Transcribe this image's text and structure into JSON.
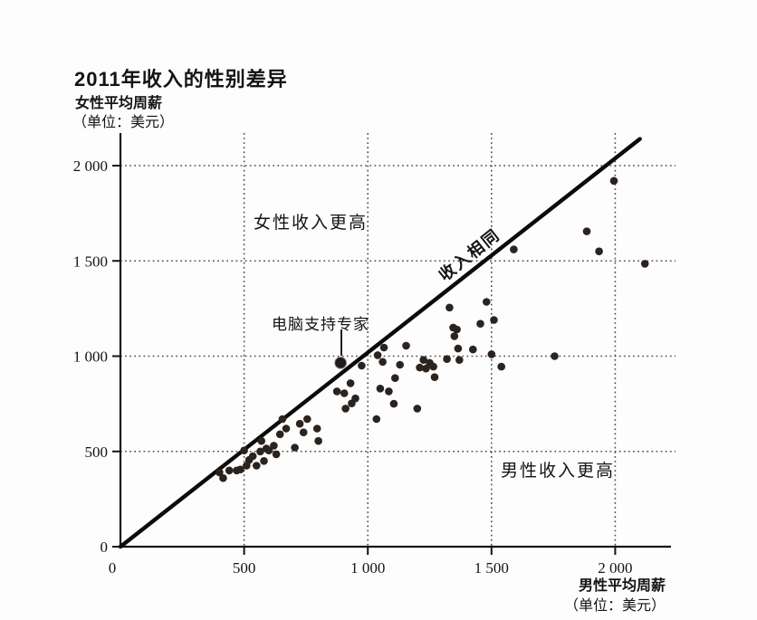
{
  "header": {
    "title": "2011年收入的性别差异",
    "y_axis_title": "女性平均周薪",
    "y_axis_unit": "（单位：美元）"
  },
  "x_axis_title": {
    "name": "男性平均周薪",
    "unit": "（单位：美元）"
  },
  "annotations": {
    "female_region_label": "女性收入更高",
    "male_region_label": "男性收入更高",
    "equal_income_line_label": "收入相同",
    "highlight_label": "电脑支持专家"
  },
  "colors": {
    "ink": "#141414",
    "dot": "#2c231e",
    "highlight_dot": "#201b18",
    "grid": "#3a3a3a",
    "diagonal": "#0b0b0b",
    "background": "#fdfdfd"
  },
  "chart_data": {
    "type": "scatter",
    "title": "2011年收入的性别差异",
    "xlabel": "男性平均周薪（单位：美元）",
    "ylabel": "女性平均周薪（单位：美元）",
    "xlim": [
      0,
      2230
    ],
    "ylim": [
      0,
      2170
    ],
    "grid": "dotted, every 500 on both axes",
    "legend": "none",
    "x_ticks": [
      {
        "value": 0,
        "label": "0"
      },
      {
        "value": 500,
        "label": "500"
      },
      {
        "value": 1000,
        "label": "1 000"
      },
      {
        "value": 1500,
        "label": "1 500"
      },
      {
        "value": 2000,
        "label": "2 000"
      }
    ],
    "y_ticks": [
      {
        "value": 0,
        "label": "0"
      },
      {
        "value": 500,
        "label": "500"
      },
      {
        "value": 1000,
        "label": "1 000"
      },
      {
        "value": 1500,
        "label": "1 500"
      },
      {
        "value": 2000,
        "label": "2 000"
      }
    ],
    "reference_line": {
      "label": "收入相同",
      "x1": 0,
      "y1": 0,
      "x2": 2100,
      "y2": 2140
    },
    "highlight_point": {
      "label": "电脑支持专家",
      "x": 890,
      "y": 965
    },
    "points": [
      [
        400,
        390
      ],
      [
        415,
        360
      ],
      [
        440,
        400
      ],
      [
        470,
        400
      ],
      [
        485,
        405
      ],
      [
        500,
        505
      ],
      [
        510,
        425
      ],
      [
        520,
        455
      ],
      [
        535,
        475
      ],
      [
        550,
        425
      ],
      [
        565,
        500
      ],
      [
        570,
        555
      ],
      [
        580,
        450
      ],
      [
        590,
        515
      ],
      [
        600,
        505
      ],
      [
        620,
        530
      ],
      [
        630,
        485
      ],
      [
        645,
        590
      ],
      [
        655,
        670
      ],
      [
        670,
        620
      ],
      [
        705,
        520
      ],
      [
        725,
        645
      ],
      [
        740,
        600
      ],
      [
        755,
        670
      ],
      [
        795,
        620
      ],
      [
        800,
        555
      ],
      [
        875,
        815
      ],
      [
        905,
        805
      ],
      [
        910,
        725
      ],
      [
        930,
        858
      ],
      [
        935,
        752
      ],
      [
        950,
        778
      ],
      [
        975,
        950
      ],
      [
        1035,
        670
      ],
      [
        1040,
        1005
      ],
      [
        1050,
        830
      ],
      [
        1060,
        970
      ],
      [
        1065,
        1045
      ],
      [
        1085,
        815
      ],
      [
        1105,
        750
      ],
      [
        1110,
        885
      ],
      [
        1130,
        955
      ],
      [
        1155,
        1055
      ],
      [
        1200,
        725
      ],
      [
        1210,
        940
      ],
      [
        1225,
        980
      ],
      [
        1235,
        935
      ],
      [
        1250,
        965
      ],
      [
        1265,
        945
      ],
      [
        1270,
        890
      ],
      [
        1320,
        985
      ],
      [
        1330,
        1255
      ],
      [
        1345,
        1150
      ],
      [
        1350,
        1105
      ],
      [
        1360,
        1140
      ],
      [
        1365,
        1040
      ],
      [
        1370,
        980
      ],
      [
        1425,
        1035
      ],
      [
        1455,
        1170
      ],
      [
        1480,
        1285
      ],
      [
        1500,
        1010
      ],
      [
        1510,
        1190
      ],
      [
        1540,
        945
      ],
      [
        1755,
        1000
      ],
      [
        1590,
        1560
      ],
      [
        1885,
        1655
      ],
      [
        1935,
        1550
      ],
      [
        1995,
        1920
      ],
      [
        2120,
        1485
      ]
    ]
  }
}
